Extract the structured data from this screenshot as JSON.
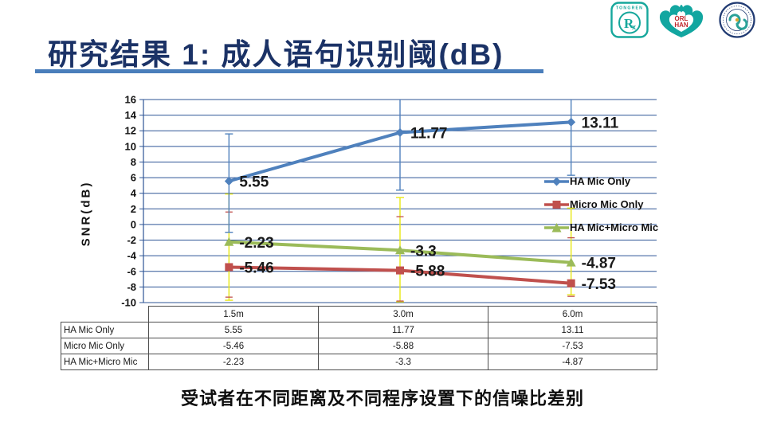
{
  "slide": {
    "title": "研究结果 1: 成人语句识别阈(dB)",
    "caption": "受试者在不同距离及不同程序设置下的信噪比差别",
    "colors": {
      "title": "#1B3266",
      "underline": "#4A7EBB",
      "grid": "#2E5596",
      "axis": "#2E5596",
      "table_border": "#4D4D4D",
      "data_label": "#1A1A1A",
      "background": "#FFFFFF",
      "logo_teal": "#12A6A0",
      "logo_navy": "#203A72",
      "logo_red": "#C0282D"
    },
    "logos": [
      {
        "name": "tongren-badge-logo",
        "text": "TONGREN",
        "monogram": "R"
      },
      {
        "name": "orl-han-logo",
        "text_line1": "ORL",
        "text_line2": "HAN"
      },
      {
        "name": "hospital-seal-logo"
      }
    ]
  },
  "chart_data": {
    "type": "line",
    "title": "",
    "xlabel": "",
    "ylabel": "SNR(dB)",
    "ylim": [
      -10,
      16
    ],
    "ytick_step": 2,
    "grid": true,
    "legend_position": "right-inside",
    "categories": [
      "1.5m",
      "3.0m",
      "6.0m"
    ],
    "series": [
      {
        "name": "HA Mic Only",
        "color": "#4F81BD",
        "marker": "diamond",
        "values": [
          5.55,
          11.77,
          13.11
        ],
        "labels": [
          "5.55",
          "11.77",
          "13.11"
        ],
        "error_bars": [
          {
            "lo": -1.0,
            "hi": 11.6
          },
          {
            "lo": 4.4,
            "hi": 16.4
          },
          {
            "lo": 6.3,
            "hi": 16.4
          }
        ]
      },
      {
        "name": "Micro Mic Only",
        "color": "#C0504D",
        "marker": "square",
        "values": [
          -5.46,
          -5.88,
          -7.53
        ],
        "labels": [
          "-5.46",
          "-5.88",
          "-7.53"
        ],
        "error_caps": [
          [
            1.6,
            -9.3
          ],
          [
            1.0,
            -9.8
          ],
          [
            -1.7,
            -9.2
          ]
        ]
      },
      {
        "name": "HA Mic+Micro Mic",
        "color": "#9BBB59",
        "marker": "triangle",
        "error_color": "#E8E813",
        "values": [
          -2.23,
          -3.3,
          -4.87
        ],
        "labels": [
          "-2.23",
          "-3.3",
          "-4.87"
        ],
        "error_bars": [
          {
            "lo": -9.7,
            "hi": 3.9
          },
          {
            "lo": -9.9,
            "hi": 3.45
          },
          {
            "lo": -9.0,
            "hi": 2.1
          }
        ]
      }
    ]
  },
  "table": {
    "col_headers": [
      "1.5m",
      "3.0m",
      "6.0m"
    ],
    "rows": [
      {
        "label": "HA Mic Only",
        "values": [
          "5.55",
          "11.77",
          "13.11"
        ]
      },
      {
        "label": "Micro Mic Only",
        "values": [
          "-5.46",
          "-5.88",
          "-7.53"
        ]
      },
      {
        "label": "HA Mic+Micro Mic",
        "values": [
          "-2.23",
          "-3.3",
          "-4.87"
        ]
      }
    ]
  }
}
